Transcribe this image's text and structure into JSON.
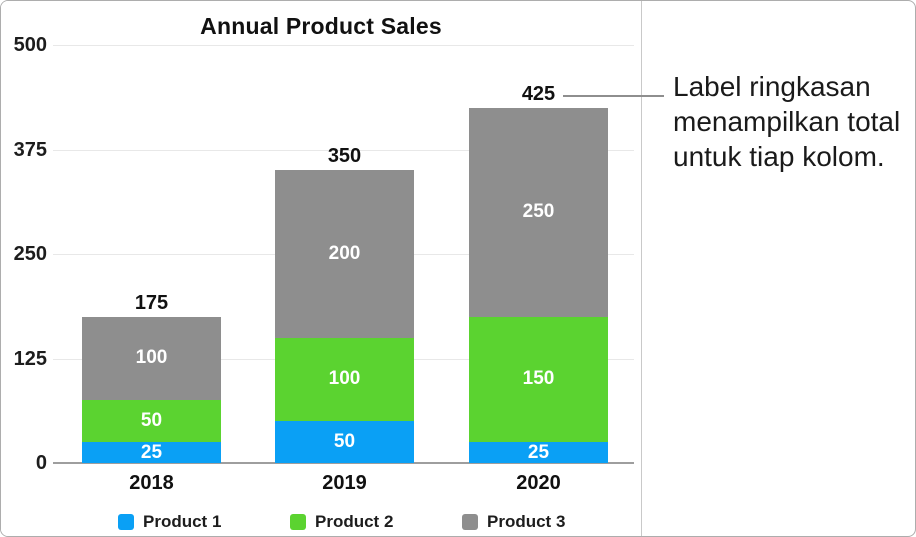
{
  "figure": {
    "callout": {
      "text": "Label ringkasan\nmenampilkan total\nuntuk tiap kolom.",
      "points_to": "425"
    }
  },
  "chart_data": {
    "type": "bar",
    "stacked": true,
    "title": "Annual Product Sales",
    "categories": [
      "2018",
      "2019",
      "2020"
    ],
    "series": [
      {
        "name": "Product 1",
        "color": "#0aa0f5",
        "values": [
          25,
          50,
          25
        ]
      },
      {
        "name": "Product 2",
        "color": "#5bd330",
        "values": [
          50,
          100,
          150
        ]
      },
      {
        "name": "Product 3",
        "color": "#8e8e8e",
        "values": [
          100,
          200,
          250
        ]
      }
    ],
    "totals": [
      175,
      350,
      425
    ],
    "y_ticks": [
      0,
      125,
      250,
      375,
      500
    ],
    "ylim": [
      0,
      500
    ],
    "grid": true,
    "legend_position": "bottom",
    "value_labels": "inside-white",
    "total_labels": "above-column"
  }
}
